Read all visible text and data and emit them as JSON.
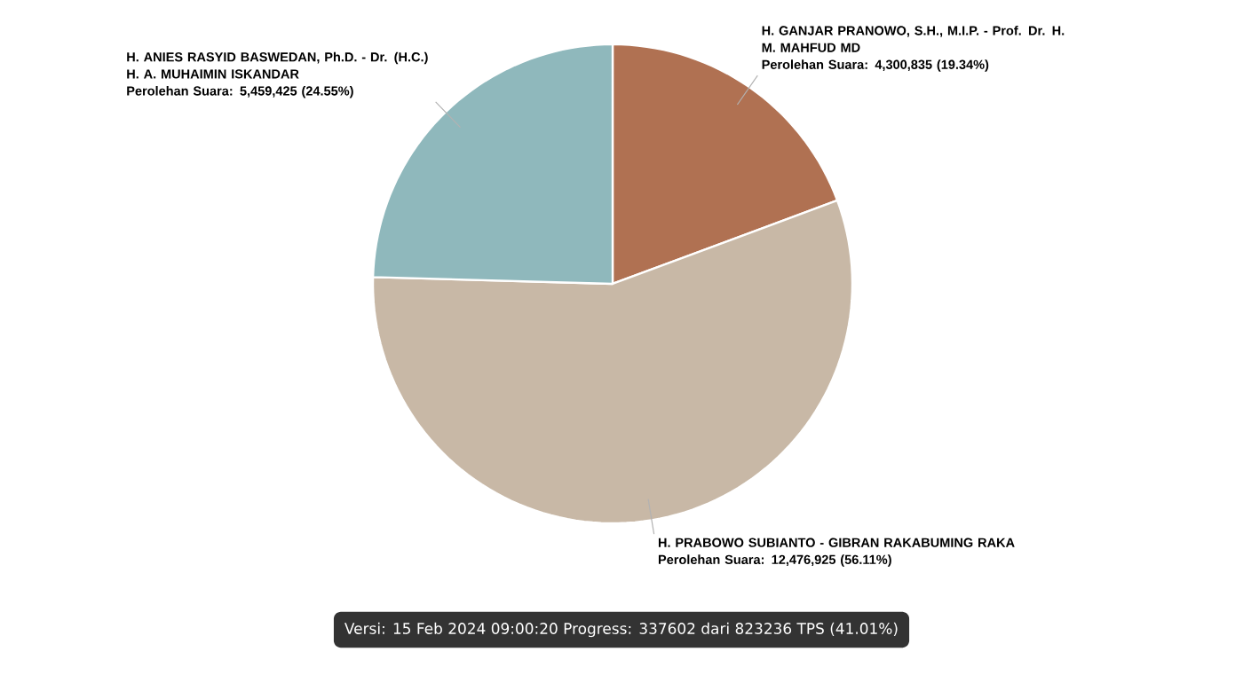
{
  "chart_data": {
    "type": "pie",
    "categories": [
      "H. GANJAR PRANOWO, S.H., M.I.P. - Prof. Dr. H. M. MAHFUD MD",
      "H. PRABOWO SUBIANTO - GIBRAN RAKABUMING RAKA",
      "H. ANIES RASYID BASWEDAN, Ph.D. - Dr. (H.C.) H. A. MUHAIMIN ISKANDAR"
    ],
    "values": [
      4300835,
      12476925,
      5459425
    ],
    "value_labels": [
      "Perolehan Suara: 4,300,835 (19.34%)",
      "Perolehan Suara: 12,476,925 (56.11%)",
      "Perolehan Suara: 5,459,425 (24.55%)"
    ],
    "colors": [
      "#b07152",
      "#c8b8a6",
      "#8fb8bc"
    ],
    "annotations": [
      "Versi: 15 Feb 2024 09:00:20 Progress: 337602 dari 823236 TPS (41.01%)"
    ]
  }
}
